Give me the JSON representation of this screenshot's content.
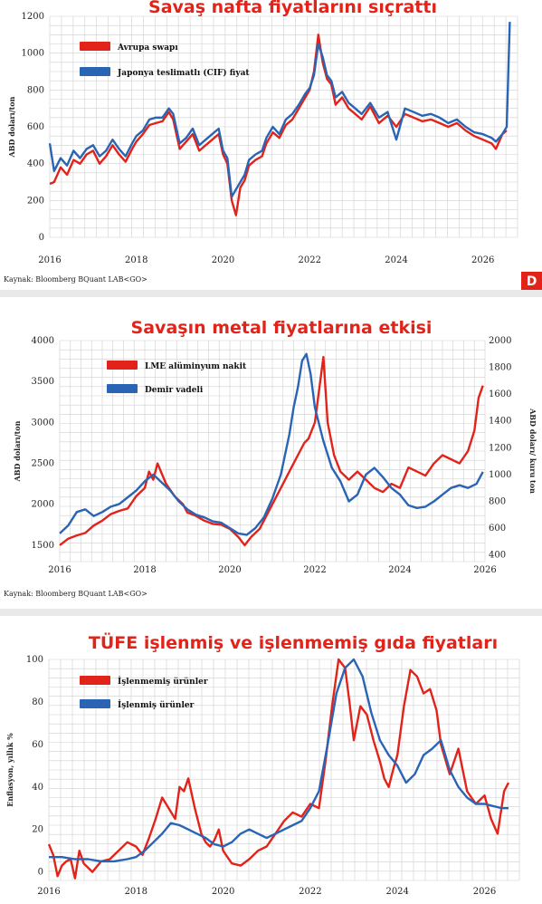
{
  "source_text": "Kaynak: Bloomberg BQuant LAB<GO>",
  "badge_text": "D",
  "colors": {
    "red": "#e2231a",
    "blue": "#2a64b4",
    "grid": "#cfcfcf"
  },
  "chart_data": [
    {
      "type": "line",
      "title": "Savaş nafta fiyatlarını sıçrattı",
      "ylabel": "ABD doları/ton",
      "ylim": [
        0,
        1200
      ],
      "yticks": [
        0,
        200,
        400,
        600,
        800,
        1000,
        1200
      ],
      "xlim": [
        2016,
        2026.8
      ],
      "xticks": [
        2016,
        2018,
        2020,
        2022,
        2024,
        2026
      ],
      "grid": true,
      "legend_position": "top-left",
      "series": [
        {
          "name": "Avrupa swapı",
          "color": "red",
          "x": [
            2016.0,
            2016.1,
            2016.25,
            2016.4,
            2016.55,
            2016.7,
            2016.85,
            2017.0,
            2017.15,
            2017.3,
            2017.45,
            2017.6,
            2017.75,
            2017.9,
            2018.0,
            2018.15,
            2018.3,
            2018.45,
            2018.6,
            2018.75,
            2018.85,
            2019.0,
            2019.15,
            2019.3,
            2019.45,
            2019.6,
            2019.75,
            2019.9,
            2020.0,
            2020.1,
            2020.2,
            2020.3,
            2020.4,
            2020.5,
            2020.6,
            2020.75,
            2020.9,
            2021.0,
            2021.15,
            2021.3,
            2021.45,
            2021.6,
            2021.75,
            2021.9,
            2022.0,
            2022.1,
            2022.2,
            2022.3,
            2022.4,
            2022.5,
            2022.6,
            2022.75,
            2022.9,
            2023.0,
            2023.2,
            2023.4,
            2023.6,
            2023.8,
            2024.0,
            2024.2,
            2024.4,
            2024.6,
            2024.8,
            2025.0,
            2025.2,
            2025.4,
            2025.6,
            2025.8,
            2026.0,
            2026.2,
            2026.3,
            2026.45,
            2026.55
          ],
          "values": [
            290,
            300,
            380,
            340,
            420,
            400,
            450,
            470,
            400,
            440,
            500,
            450,
            410,
            480,
            520,
            560,
            610,
            620,
            630,
            680,
            640,
            480,
            520,
            560,
            470,
            500,
            530,
            560,
            450,
            400,
            200,
            120,
            270,
            310,
            390,
            420,
            440,
            510,
            570,
            540,
            610,
            640,
            700,
            760,
            800,
            900,
            1100,
            950,
            860,
            830,
            720,
            760,
            700,
            680,
            640,
            710,
            620,
            660,
            600,
            670,
            650,
            630,
            640,
            620,
            600,
            620,
            580,
            550,
            530,
            510,
            480,
            560,
            580
          ]
        },
        {
          "name": "Japonya teslimatlı (CIF) fiyat",
          "color": "blue",
          "x": [
            2016.0,
            2016.1,
            2016.25,
            2016.4,
            2016.55,
            2016.7,
            2016.85,
            2017.0,
            2017.15,
            2017.3,
            2017.45,
            2017.6,
            2017.75,
            2017.9,
            2018.0,
            2018.15,
            2018.3,
            2018.45,
            2018.6,
            2018.75,
            2018.85,
            2019.0,
            2019.15,
            2019.3,
            2019.45,
            2019.6,
            2019.75,
            2019.9,
            2020.0,
            2020.1,
            2020.2,
            2020.3,
            2020.4,
            2020.5,
            2020.6,
            2020.75,
            2020.9,
            2021.0,
            2021.15,
            2021.3,
            2021.45,
            2021.6,
            2021.75,
            2021.9,
            2022.0,
            2022.1,
            2022.2,
            2022.3,
            2022.4,
            2022.5,
            2022.6,
            2022.75,
            2022.9,
            2023.0,
            2023.2,
            2023.4,
            2023.6,
            2023.8,
            2024.0,
            2024.2,
            2024.4,
            2024.6,
            2024.8,
            2025.0,
            2025.2,
            2025.4,
            2025.6,
            2025.8,
            2026.0,
            2026.2,
            2026.3,
            2026.45,
            2026.55,
            2026.62
          ],
          "values": [
            510,
            360,
            430,
            390,
            470,
            430,
            480,
            500,
            440,
            470,
            530,
            480,
            440,
            510,
            550,
            580,
            640,
            650,
            650,
            700,
            670,
            510,
            540,
            590,
            500,
            530,
            560,
            590,
            470,
            430,
            220,
            260,
            300,
            340,
            420,
            450,
            470,
            540,
            600,
            560,
            640,
            670,
            720,
            780,
            810,
            880,
            1050,
            980,
            880,
            850,
            760,
            790,
            730,
            710,
            670,
            730,
            650,
            680,
            530,
            700,
            680,
            660,
            670,
            650,
            620,
            640,
            600,
            570,
            560,
            540,
            520,
            560,
            600,
            1170
          ]
        }
      ]
    },
    {
      "type": "line",
      "title": "Savaşın metal fiyatlarına etkisi",
      "ylabel": "ABD doları/ton",
      "y2label": "ABD doları/ kuru ton",
      "ylim": [
        1300,
        4000
      ],
      "yticks": [
        1500,
        2000,
        2500,
        3000,
        3500,
        4000
      ],
      "y2lim": [
        350,
        2000
      ],
      "y2ticks": [
        400,
        600,
        800,
        1000,
        1200,
        1400,
        1600,
        1800,
        2000
      ],
      "xlim": [
        2016,
        2026
      ],
      "xticks": [
        2016,
        2018,
        2020,
        2022,
        2024,
        2026
      ],
      "grid": true,
      "legend_position": "top-left",
      "series": [
        {
          "name": "LME alüminyum nakit",
          "color": "red",
          "axis": "left",
          "x": [
            2016.0,
            2016.2,
            2016.4,
            2016.6,
            2016.8,
            2017.0,
            2017.2,
            2017.4,
            2017.6,
            2017.8,
            2018.0,
            2018.1,
            2018.2,
            2018.3,
            2018.5,
            2018.7,
            2018.9,
            2019.0,
            2019.2,
            2019.4,
            2019.6,
            2019.8,
            2020.0,
            2020.2,
            2020.35,
            2020.5,
            2020.7,
            2020.9,
            2021.0,
            2021.2,
            2021.4,
            2021.6,
            2021.75,
            2021.85,
            2022.0,
            2022.1,
            2022.2,
            2022.3,
            2022.45,
            2022.6,
            2022.8,
            2023.0,
            2023.2,
            2023.4,
            2023.6,
            2023.8,
            2024.0,
            2024.2,
            2024.4,
            2024.6,
            2024.8,
            2025.0,
            2025.2,
            2025.4,
            2025.6,
            2025.75,
            2025.85,
            2025.95
          ],
          "values": [
            1500,
            1580,
            1620,
            1650,
            1740,
            1800,
            1880,
            1920,
            1950,
            2100,
            2200,
            2400,
            2300,
            2500,
            2250,
            2100,
            2000,
            1900,
            1860,
            1800,
            1760,
            1750,
            1700,
            1600,
            1500,
            1600,
            1700,
            1900,
            2000,
            2200,
            2400,
            2600,
            2750,
            2800,
            3000,
            3400,
            3800,
            3000,
            2600,
            2400,
            2300,
            2400,
            2300,
            2200,
            2150,
            2250,
            2200,
            2450,
            2400,
            2350,
            2500,
            2600,
            2550,
            2500,
            2650,
            2900,
            3300,
            3450
          ]
        },
        {
          "name": "Demir vadeli",
          "color": "blue",
          "axis": "right",
          "x": [
            2016.0,
            2016.2,
            2016.4,
            2016.6,
            2016.8,
            2017.0,
            2017.2,
            2017.4,
            2017.6,
            2017.8,
            2018.0,
            2018.2,
            2018.4,
            2018.6,
            2018.8,
            2019.0,
            2019.2,
            2019.4,
            2019.6,
            2019.8,
            2020.0,
            2020.2,
            2020.4,
            2020.6,
            2020.8,
            2021.0,
            2021.2,
            2021.4,
            2021.5,
            2021.6,
            2021.7,
            2021.8,
            2021.9,
            2022.0,
            2022.2,
            2022.4,
            2022.6,
            2022.8,
            2023.0,
            2023.2,
            2023.4,
            2023.6,
            2023.8,
            2024.0,
            2024.2,
            2024.4,
            2024.6,
            2024.8,
            2025.0,
            2025.2,
            2025.4,
            2025.6,
            2025.8,
            2025.95
          ],
          "values": [
            560,
            620,
            720,
            740,
            690,
            720,
            760,
            780,
            830,
            880,
            950,
            1000,
            940,
            880,
            800,
            740,
            700,
            680,
            650,
            640,
            600,
            560,
            550,
            600,
            680,
            820,
            1000,
            1300,
            1500,
            1650,
            1850,
            1900,
            1750,
            1500,
            1250,
            1050,
            950,
            800,
            850,
            1000,
            1050,
            980,
            900,
            850,
            770,
            750,
            760,
            800,
            850,
            900,
            920,
            900,
            930,
            1020
          ]
        }
      ]
    },
    {
      "type": "line",
      "title": "TÜFE işlenmiş ve işlenmemiş gıda fiyatları",
      "ylabel": "Enflasyon, yıllık %",
      "ylim": [
        -4,
        100
      ],
      "yticks": [
        0,
        20,
        40,
        60,
        80,
        100
      ],
      "xlim": [
        2016,
        2026.8
      ],
      "xticks": [
        2016,
        2018,
        2020,
        2022,
        2024,
        2026
      ],
      "grid": true,
      "legend_position": "top-left",
      "series": [
        {
          "name": "İşlenmemiş ürünler",
          "color": "red",
          "x": [
            2016.0,
            2016.1,
            2016.2,
            2016.3,
            2016.4,
            2016.5,
            2016.6,
            2016.7,
            2016.8,
            2016.9,
            2017.0,
            2017.2,
            2017.4,
            2017.6,
            2017.8,
            2018.0,
            2018.15,
            2018.3,
            2018.45,
            2018.6,
            2018.75,
            2018.9,
            2019.0,
            2019.1,
            2019.2,
            2019.35,
            2019.5,
            2019.6,
            2019.7,
            2019.8,
            2019.9,
            2020.0,
            2020.2,
            2020.4,
            2020.6,
            2020.8,
            2021.0,
            2021.2,
            2021.4,
            2021.6,
            2021.8,
            2022.0,
            2022.2,
            2022.35,
            2022.5,
            2022.65,
            2022.8,
            2022.9,
            2023.0,
            2023.15,
            2023.3,
            2023.45,
            2023.6,
            2023.7,
            2023.8,
            2023.9,
            2024.0,
            2024.15,
            2024.3,
            2024.45,
            2024.6,
            2024.75,
            2024.9,
            2025.0,
            2025.2,
            2025.4,
            2025.6,
            2025.8,
            2026.0,
            2026.15,
            2026.3,
            2026.45,
            2026.55
          ],
          "values": [
            13,
            8,
            -2,
            3,
            5,
            6,
            -3,
            10,
            4,
            2,
            0,
            5,
            6,
            10,
            14,
            12,
            8,
            16,
            25,
            35,
            30,
            25,
            40,
            38,
            44,
            30,
            18,
            14,
            12,
            15,
            20,
            10,
            4,
            3,
            6,
            10,
            12,
            18,
            24,
            28,
            26,
            32,
            30,
            52,
            78,
            100,
            96,
            80,
            62,
            78,
            74,
            62,
            52,
            44,
            40,
            48,
            55,
            78,
            95,
            92,
            84,
            86,
            76,
            60,
            46,
            58,
            38,
            32,
            36,
            25,
            18,
            38,
            42
          ]
        },
        {
          "name": "İşlenmiş ürünler",
          "color": "blue",
          "x": [
            2016.0,
            2016.3,
            2016.6,
            2016.9,
            2017.2,
            2017.5,
            2017.8,
            2018.0,
            2018.2,
            2018.4,
            2018.6,
            2018.8,
            2019.0,
            2019.2,
            2019.4,
            2019.6,
            2019.8,
            2020.0,
            2020.2,
            2020.4,
            2020.6,
            2020.8,
            2021.0,
            2021.2,
            2021.4,
            2021.6,
            2021.8,
            2022.0,
            2022.2,
            2022.4,
            2022.6,
            2022.8,
            2023.0,
            2023.2,
            2023.4,
            2023.6,
            2023.8,
            2024.0,
            2024.2,
            2024.4,
            2024.6,
            2024.8,
            2025.0,
            2025.2,
            2025.4,
            2025.6,
            2025.8,
            2026.0,
            2026.2,
            2026.4,
            2026.55
          ],
          "values": [
            7,
            7,
            6,
            6,
            5,
            5,
            6,
            7,
            10,
            14,
            18,
            23,
            22,
            20,
            18,
            16,
            13,
            12,
            14,
            18,
            20,
            18,
            16,
            18,
            20,
            22,
            24,
            30,
            38,
            60,
            84,
            96,
            100,
            92,
            75,
            62,
            55,
            50,
            42,
            46,
            55,
            58,
            62,
            48,
            40,
            35,
            32,
            32,
            31,
            30,
            30
          ]
        }
      ]
    }
  ]
}
